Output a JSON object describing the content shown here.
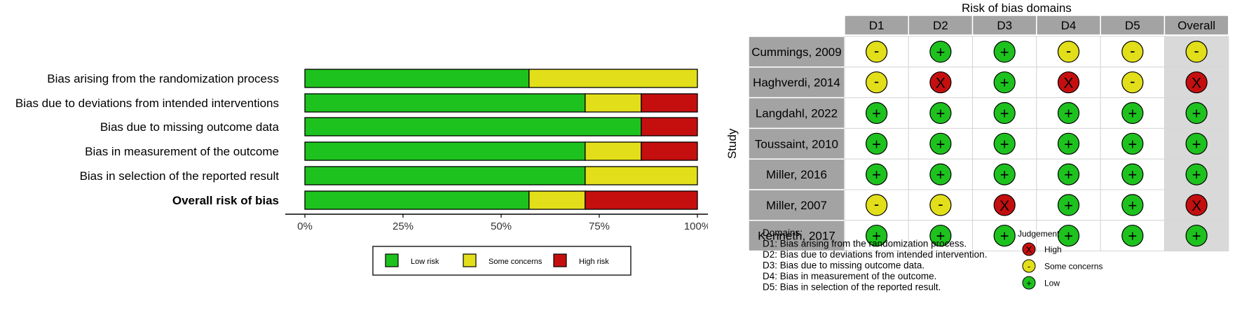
{
  "colors": {
    "low": "#1ec21e",
    "some": "#e2df1a",
    "high": "#c50f0f",
    "header_fill": "#a3a3a3",
    "study_fill": "#a3a3a3",
    "overall_fill": "#d9d9d9"
  },
  "chart_data": [
    {
      "type": "bar",
      "stacked": true,
      "orientation": "horizontal",
      "categories": [
        "Bias arising from the randomization process",
        "Bias due to deviations from intended interventions",
        "Bias due to missing outcome data",
        "Bias in measurement of the outcome",
        "Bias in selection of the reported result",
        "Overall risk of bias"
      ],
      "series": [
        {
          "name": "Low risk",
          "color": "#1ec21e",
          "values": [
            57.1,
            71.4,
            85.7,
            71.4,
            71.4,
            57.1
          ]
        },
        {
          "name": "Some concerns",
          "color": "#e2df1a",
          "values": [
            42.9,
            14.3,
            0,
            14.3,
            28.6,
            14.3
          ]
        },
        {
          "name": "High risk",
          "color": "#c50f0f",
          "values": [
            0,
            14.3,
            14.3,
            14.3,
            0,
            28.6
          ]
        }
      ],
      "xlim": [
        0,
        100
      ],
      "x_ticks": [
        "0%",
        "25%",
        "50%",
        "75%",
        "100%"
      ],
      "legend": {
        "position": "bottom",
        "entries": [
          "Low risk",
          "Some concerns",
          "High risk"
        ]
      }
    },
    {
      "type": "table",
      "title": "Risk of bias domains",
      "row_axis_label": "Study",
      "columns": [
        "D1",
        "D2",
        "D3",
        "D4",
        "D5",
        "Overall"
      ],
      "rows": [
        {
          "study": "Cummings, 2009",
          "judgements": [
            "some",
            "low",
            "low",
            "some",
            "some",
            "some"
          ]
        },
        {
          "study": "Haghverdi, 2014",
          "judgements": [
            "some",
            "high",
            "low",
            "high",
            "some",
            "high"
          ]
        },
        {
          "study": "Langdahl, 2022",
          "judgements": [
            "low",
            "low",
            "low",
            "low",
            "low",
            "low"
          ]
        },
        {
          "study": "Toussaint, 2010",
          "judgements": [
            "low",
            "low",
            "low",
            "low",
            "low",
            "low"
          ]
        },
        {
          "study": "Miller, 2016",
          "judgements": [
            "low",
            "low",
            "low",
            "low",
            "low",
            "low"
          ]
        },
        {
          "study": "Miller, 2007",
          "judgements": [
            "some",
            "some",
            "high",
            "low",
            "low",
            "high"
          ]
        },
        {
          "study": "Kenneth, 2017",
          "judgements": [
            "low",
            "low",
            "low",
            "low",
            "low",
            "low"
          ]
        }
      ],
      "symbols": {
        "low": "+",
        "some": "-",
        "high": "X"
      },
      "domains_title": "Domains:",
      "domains": [
        "D1: Bias arising from the randomization process.",
        "D2: Bias due to deviations from intended intervention.",
        "D3: Bias due to missing outcome data.",
        "D4: Bias in measurement of the outcome.",
        "D5: Bias in selection of the reported result."
      ],
      "judgement_title": "Judgement",
      "judgement_legend": [
        {
          "level": "high",
          "label": "High"
        },
        {
          "level": "some",
          "label": "Some concerns"
        },
        {
          "level": "low",
          "label": "Low"
        }
      ]
    }
  ]
}
